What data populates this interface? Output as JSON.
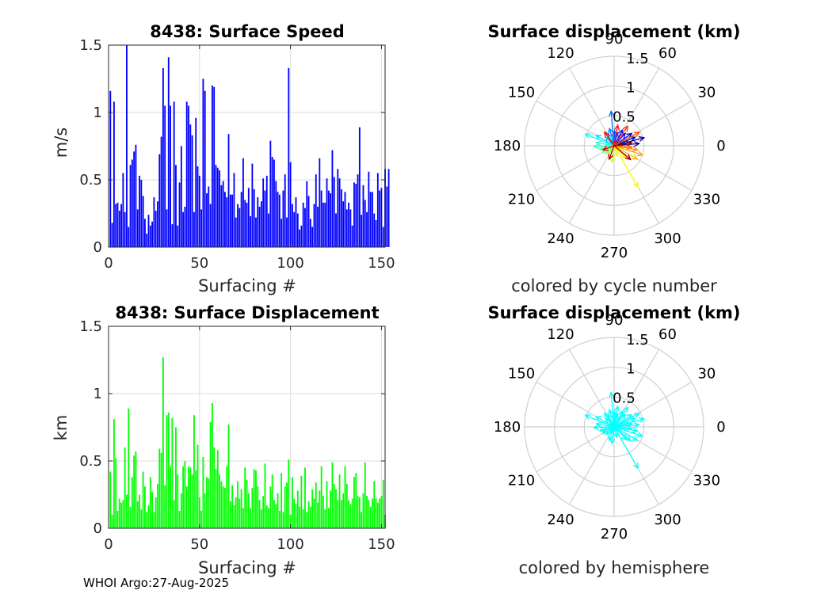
{
  "footer": "WHOI Argo:27-Aug-2025",
  "chart_data": [
    {
      "type": "bar",
      "title": "8438: Surface Speed",
      "xlabel": "Surfacing #",
      "ylabel": "m/s",
      "xlim": [
        0,
        152
      ],
      "ylim": [
        0,
        1.5
      ],
      "xticks": [
        "0",
        "50",
        "100",
        "150"
      ],
      "yticks": [
        "0",
        "0.5",
        "1",
        "1.5"
      ],
      "color": "#0000ff",
      "values": [
        1.16,
        0.18,
        1.08,
        0.32,
        0.33,
        0.27,
        0.32,
        0.55,
        0.26,
        1.5,
        0.15,
        0.61,
        0.65,
        0.71,
        0.76,
        0.28,
        0.53,
        0.5,
        0.38,
        0.21,
        0.1,
        0.24,
        0.16,
        0.19,
        0.37,
        0.27,
        0.34,
        0.69,
        0.82,
        1.33,
        1.05,
        0.28,
        1.41,
        1.05,
        0.17,
        1.08,
        0.61,
        0.16,
        0.48,
        0.75,
        0.26,
        0.3,
        1.08,
        1.05,
        0.91,
        0.83,
        0.26,
        0.96,
        0.6,
        0.53,
        0.28,
        1.25,
        1.16,
        0.4,
        0.45,
        0.32,
        1.2,
        1.19,
        0.61,
        0.59,
        0.57,
        0.46,
        0.49,
        0.41,
        0.37,
        0.84,
        0.39,
        0.39,
        0.55,
        0.22,
        0.32,
        0.29,
        0.41,
        0.66,
        0.35,
        0.33,
        0.44,
        0.23,
        0.62,
        0.43,
        0.22,
        0.37,
        0.3,
        0.34,
        0.51,
        0.42,
        0.53,
        0.25,
        0.79,
        0.67,
        0.65,
        0.49,
        0.41,
        0.39,
        0.21,
        0.42,
        0.54,
        0.22,
        1.33,
        0.63,
        0.32,
        0.26,
        0.37,
        0.25,
        0.13,
        0.16,
        0.33,
        0.29,
        0.49,
        0.38,
        0.21,
        0.15,
        0.32,
        0.54,
        0.3,
        0.66,
        0.42,
        0.33,
        0.33,
        0.51,
        0.42,
        0.4,
        0.72,
        0.52,
        0.25,
        0.58,
        0.51,
        0.43,
        0.34,
        0.41,
        0.28,
        0.33,
        0.28,
        0.16,
        0.48,
        0.47,
        0.54,
        0.89,
        0.24,
        0.46,
        0.35,
        0.26,
        0.56,
        0.41,
        0.41,
        0.25,
        0.2,
        0.55,
        0.42,
        0.44,
        0.15,
        0.58,
        0.45,
        0.58
      ]
    },
    {
      "type": "polar",
      "title": "Surface displacement (km)",
      "subtitle": "colored by cycle number",
      "rlim": [
        0,
        1.5
      ],
      "rticks": [
        "0.5",
        "1",
        "1.5"
      ],
      "angle_ticks": [
        "0",
        "30",
        "60",
        "90",
        "120",
        "150",
        "180",
        "210",
        "240",
        "270",
        "300",
        "330"
      ],
      "coloring": "cycle",
      "vectors": [
        {
          "angle": 5,
          "r": 0.42
        },
        {
          "angle": 15,
          "r": 0.52
        },
        {
          "angle": 22,
          "r": 0.38
        },
        {
          "angle": 35,
          "r": 0.36
        },
        {
          "angle": 48,
          "r": 0.28
        },
        {
          "angle": 62,
          "r": 0.3
        },
        {
          "angle": 75,
          "r": 0.22
        },
        {
          "angle": 88,
          "r": 0.25
        },
        {
          "angle": 95,
          "r": 0.58
        },
        {
          "angle": 105,
          "r": 0.3
        },
        {
          "angle": 118,
          "r": 0.22
        },
        {
          "angle": 135,
          "r": 0.2
        },
        {
          "angle": 150,
          "r": 0.35
        },
        {
          "angle": 158,
          "r": 0.52
        },
        {
          "angle": 170,
          "r": 0.3
        },
        {
          "angle": 182,
          "r": 0.34
        },
        {
          "angle": 195,
          "r": 0.25
        },
        {
          "angle": 210,
          "r": 0.22
        },
        {
          "angle": 225,
          "r": 0.18
        },
        {
          "angle": 240,
          "r": 0.12
        },
        {
          "angle": 262,
          "r": 0.28
        },
        {
          "angle": 285,
          "r": 0.18
        },
        {
          "angle": 300,
          "r": 0.8
        },
        {
          "angle": 315,
          "r": 0.3
        },
        {
          "angle": 330,
          "r": 0.45
        },
        {
          "angle": 342,
          "r": 0.5
        },
        {
          "angle": 350,
          "r": 0.4
        },
        {
          "angle": 355,
          "r": 0.3
        },
        {
          "angle": 28,
          "r": 0.48
        },
        {
          "angle": 55,
          "r": 0.4
        },
        {
          "angle": 80,
          "r": 0.35
        },
        {
          "angle": 125,
          "r": 0.28
        },
        {
          "angle": 200,
          "r": 0.2
        },
        {
          "angle": 250,
          "r": 0.24
        },
        {
          "angle": 320,
          "r": 0.36
        },
        {
          "angle": 10,
          "r": 0.3
        }
      ]
    },
    {
      "type": "bar",
      "title": "8438: Surface Displacement",
      "xlabel": "Surfacing #",
      "ylabel": "km",
      "xlim": [
        0,
        152
      ],
      "ylim": [
        0,
        1.5
      ],
      "xticks": [
        "0",
        "50",
        "100",
        "150"
      ],
      "yticks": [
        "0",
        "0.5",
        "1",
        "1.5"
      ],
      "color": "#00ff00",
      "values": [
        0.42,
        0.1,
        0.81,
        0.52,
        0.13,
        0.22,
        0.19,
        0.21,
        0.6,
        0.25,
        0.89,
        0.16,
        0.38,
        0.54,
        0.57,
        0.2,
        0.25,
        0.14,
        0.42,
        0.31,
        0.12,
        0.17,
        0.38,
        0.27,
        0.12,
        0.23,
        0.33,
        0.59,
        0.56,
        1.27,
        0.32,
        0.84,
        0.86,
        0.46,
        0.82,
        0.21,
        0.75,
        0.4,
        0.13,
        0.26,
        0.46,
        0.5,
        0.31,
        0.46,
        0.45,
        0.4,
        0.84,
        0.43,
        0.62,
        0.23,
        0.13,
        0.53,
        0.26,
        0.38,
        0.37,
        0.79,
        0.93,
        0.6,
        0.44,
        0.58,
        0.4,
        0.35,
        0.31,
        0.3,
        0.46,
        0.77,
        0.2,
        0.32,
        0.17,
        0.23,
        0.35,
        0.22,
        0.29,
        0.15,
        0.45,
        0.36,
        0.26,
        0.15,
        0.3,
        0.44,
        0.43,
        0.31,
        0.21,
        0.14,
        0.24,
        0.48,
        0.17,
        0.15,
        0.31,
        0.4,
        0.21,
        0.18,
        0.26,
        0.13,
        0.41,
        0.12,
        0.31,
        0.34,
        0.51,
        0.1,
        0.38,
        0.22,
        0.18,
        0.28,
        0.16,
        0.39,
        0.14,
        0.45,
        0.12,
        0.2,
        0.16,
        0.29,
        0.22,
        0.34,
        0.19,
        0.28,
        0.46,
        0.24,
        0.14,
        0.35,
        0.15,
        0.28,
        0.49,
        0.33,
        0.29,
        0.21,
        0.4,
        0.21,
        0.26,
        0.46,
        0.33,
        0.21,
        0.18,
        0.22,
        0.38,
        0.41,
        0.24,
        0.23,
        0.12,
        0.26,
        0.49,
        0.24,
        0.21,
        0.16,
        0.22,
        0.35,
        0.22,
        0.19,
        0.22,
        0.24,
        0.36,
        0.1
      ]
    },
    {
      "type": "polar",
      "title": "Surface displacement (km)",
      "subtitle": "colored by hemisphere",
      "rlim": [
        0,
        1.5
      ],
      "rticks": [
        "0.5",
        "1",
        "1.5"
      ],
      "angle_ticks": [
        "0",
        "30",
        "60",
        "90",
        "120",
        "150",
        "180",
        "210",
        "240",
        "270",
        "300",
        "330"
      ],
      "coloring": "hemisphere",
      "color": "#00ffff",
      "vectors": [
        {
          "angle": 5,
          "r": 0.42
        },
        {
          "angle": 15,
          "r": 0.52
        },
        {
          "angle": 22,
          "r": 0.38
        },
        {
          "angle": 35,
          "r": 0.36
        },
        {
          "angle": 48,
          "r": 0.28
        },
        {
          "angle": 62,
          "r": 0.3
        },
        {
          "angle": 75,
          "r": 0.22
        },
        {
          "angle": 88,
          "r": 0.25
        },
        {
          "angle": 95,
          "r": 0.58
        },
        {
          "angle": 105,
          "r": 0.3
        },
        {
          "angle": 118,
          "r": 0.22
        },
        {
          "angle": 135,
          "r": 0.2
        },
        {
          "angle": 150,
          "r": 0.35
        },
        {
          "angle": 158,
          "r": 0.52
        },
        {
          "angle": 170,
          "r": 0.3
        },
        {
          "angle": 182,
          "r": 0.34
        },
        {
          "angle": 195,
          "r": 0.25
        },
        {
          "angle": 210,
          "r": 0.22
        },
        {
          "angle": 225,
          "r": 0.18
        },
        {
          "angle": 240,
          "r": 0.12
        },
        {
          "angle": 262,
          "r": 0.28
        },
        {
          "angle": 285,
          "r": 0.18
        },
        {
          "angle": 300,
          "r": 0.8
        },
        {
          "angle": 315,
          "r": 0.3
        },
        {
          "angle": 330,
          "r": 0.45
        },
        {
          "angle": 342,
          "r": 0.5
        },
        {
          "angle": 350,
          "r": 0.4
        },
        {
          "angle": 355,
          "r": 0.3
        },
        {
          "angle": 28,
          "r": 0.48
        },
        {
          "angle": 55,
          "r": 0.4
        },
        {
          "angle": 80,
          "r": 0.35
        },
        {
          "angle": 125,
          "r": 0.28
        },
        {
          "angle": 200,
          "r": 0.2
        },
        {
          "angle": 250,
          "r": 0.24
        },
        {
          "angle": 320,
          "r": 0.36
        },
        {
          "angle": 10,
          "r": 0.3
        }
      ]
    }
  ]
}
